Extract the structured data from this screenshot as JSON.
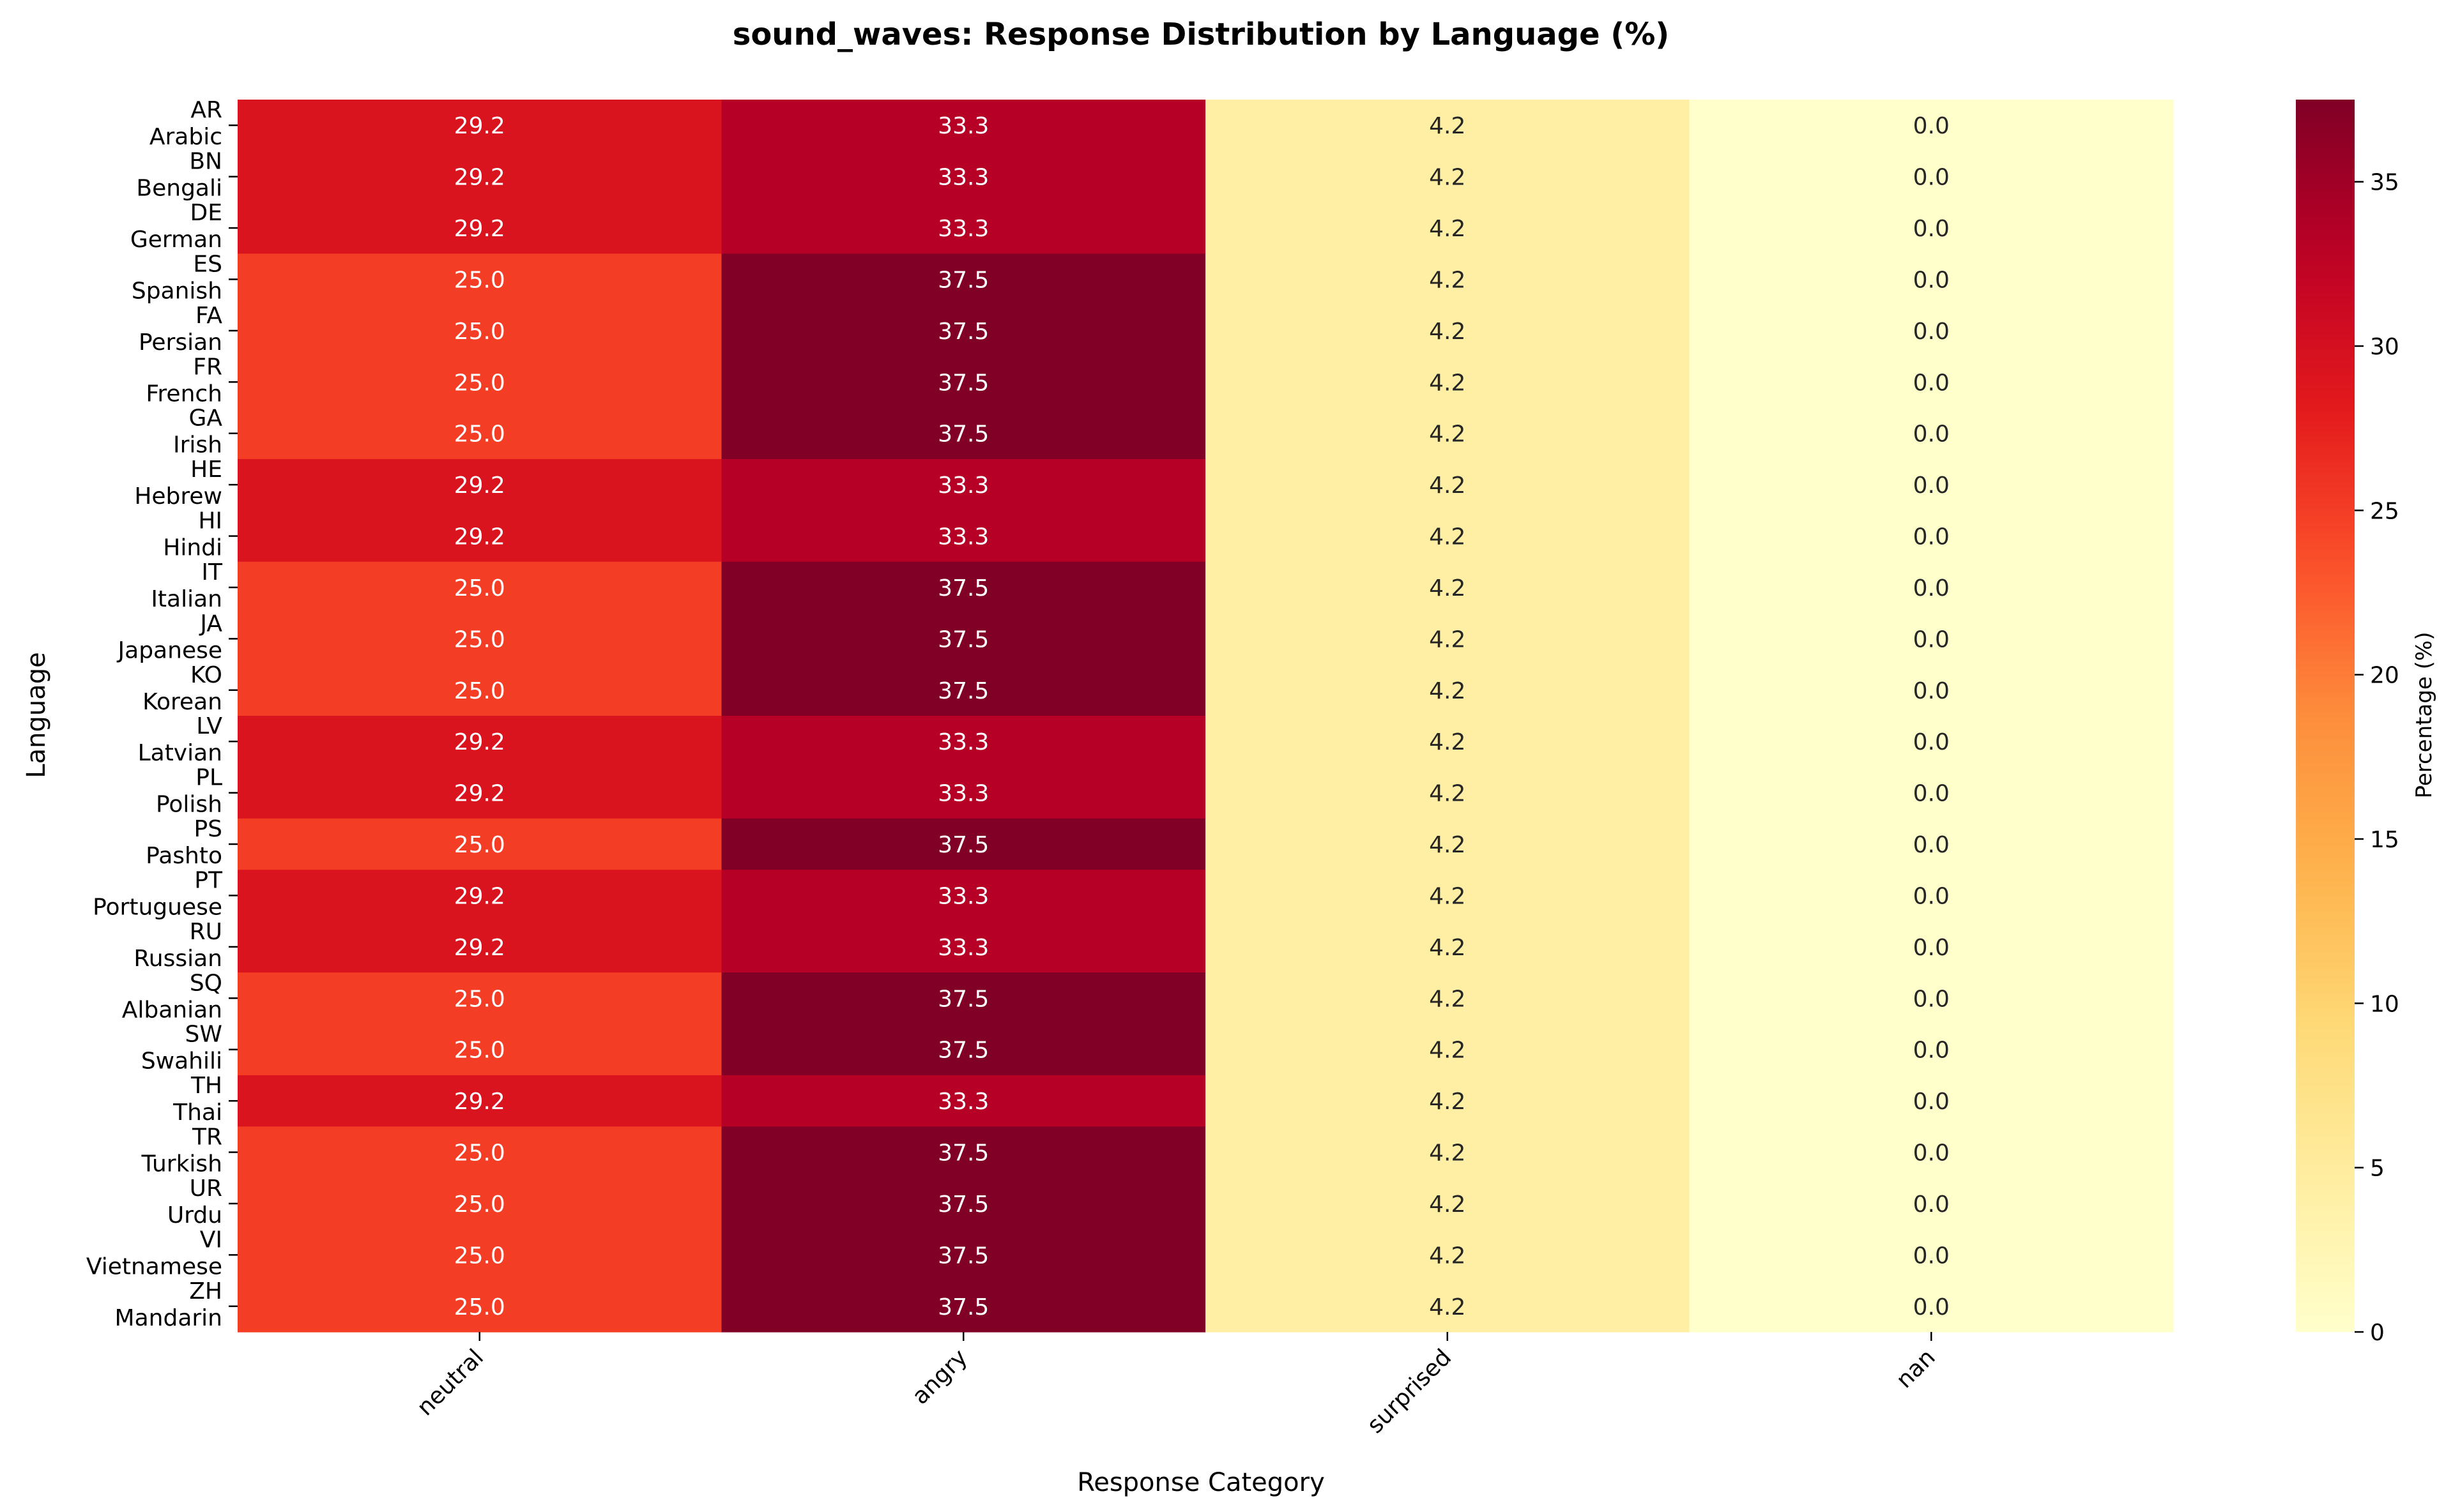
{
  "chart_data": {
    "type": "heatmap",
    "title": "sound_waves: Response Distribution by Language (%)",
    "xlabel": "Response Category",
    "ylabel": "Language",
    "colorbar_label": "Percentage (%)",
    "colorbar_ticks": [
      0,
      5,
      10,
      15,
      20,
      25,
      30,
      35
    ],
    "value_range": [
      0,
      37.5
    ],
    "colormap": "YlOrRd",
    "categories": [
      "neutral",
      "angry",
      "surprised",
      "nan"
    ],
    "rows": [
      {
        "code": "AR",
        "name": "Arabic",
        "values": [
          29.2,
          33.3,
          4.2,
          0.0
        ]
      },
      {
        "code": "BN",
        "name": "Bengali",
        "values": [
          29.2,
          33.3,
          4.2,
          0.0
        ]
      },
      {
        "code": "DE",
        "name": "German",
        "values": [
          29.2,
          33.3,
          4.2,
          0.0
        ]
      },
      {
        "code": "ES",
        "name": "Spanish",
        "values": [
          25.0,
          37.5,
          4.2,
          0.0
        ]
      },
      {
        "code": "FA",
        "name": "Persian",
        "values": [
          25.0,
          37.5,
          4.2,
          0.0
        ]
      },
      {
        "code": "FR",
        "name": "French",
        "values": [
          25.0,
          37.5,
          4.2,
          0.0
        ]
      },
      {
        "code": "GA",
        "name": "Irish",
        "values": [
          25.0,
          37.5,
          4.2,
          0.0
        ]
      },
      {
        "code": "HE",
        "name": "Hebrew",
        "values": [
          29.2,
          33.3,
          4.2,
          0.0
        ]
      },
      {
        "code": "HI",
        "name": "Hindi",
        "values": [
          29.2,
          33.3,
          4.2,
          0.0
        ]
      },
      {
        "code": "IT",
        "name": "Italian",
        "values": [
          25.0,
          37.5,
          4.2,
          0.0
        ]
      },
      {
        "code": "JA",
        "name": "Japanese",
        "values": [
          25.0,
          37.5,
          4.2,
          0.0
        ]
      },
      {
        "code": "KO",
        "name": "Korean",
        "values": [
          25.0,
          37.5,
          4.2,
          0.0
        ]
      },
      {
        "code": "LV",
        "name": "Latvian",
        "values": [
          29.2,
          33.3,
          4.2,
          0.0
        ]
      },
      {
        "code": "PL",
        "name": "Polish",
        "values": [
          29.2,
          33.3,
          4.2,
          0.0
        ]
      },
      {
        "code": "PS",
        "name": "Pashto",
        "values": [
          25.0,
          37.5,
          4.2,
          0.0
        ]
      },
      {
        "code": "PT",
        "name": "Portuguese",
        "values": [
          29.2,
          33.3,
          4.2,
          0.0
        ]
      },
      {
        "code": "RU",
        "name": "Russian",
        "values": [
          29.2,
          33.3,
          4.2,
          0.0
        ]
      },
      {
        "code": "SQ",
        "name": "Albanian",
        "values": [
          25.0,
          37.5,
          4.2,
          0.0
        ]
      },
      {
        "code": "SW",
        "name": "Swahili",
        "values": [
          25.0,
          37.5,
          4.2,
          0.0
        ]
      },
      {
        "code": "TH",
        "name": "Thai",
        "values": [
          29.2,
          33.3,
          4.2,
          0.0
        ]
      },
      {
        "code": "TR",
        "name": "Turkish",
        "values": [
          25.0,
          37.5,
          4.2,
          0.0
        ]
      },
      {
        "code": "UR",
        "name": "Urdu",
        "values": [
          25.0,
          37.5,
          4.2,
          0.0
        ]
      },
      {
        "code": "VI",
        "name": "Vietnamese",
        "values": [
          25.0,
          37.5,
          4.2,
          0.0
        ]
      },
      {
        "code": "ZH",
        "name": "Mandarin",
        "values": [
          25.0,
          37.5,
          4.2,
          0.0
        ]
      }
    ]
  }
}
